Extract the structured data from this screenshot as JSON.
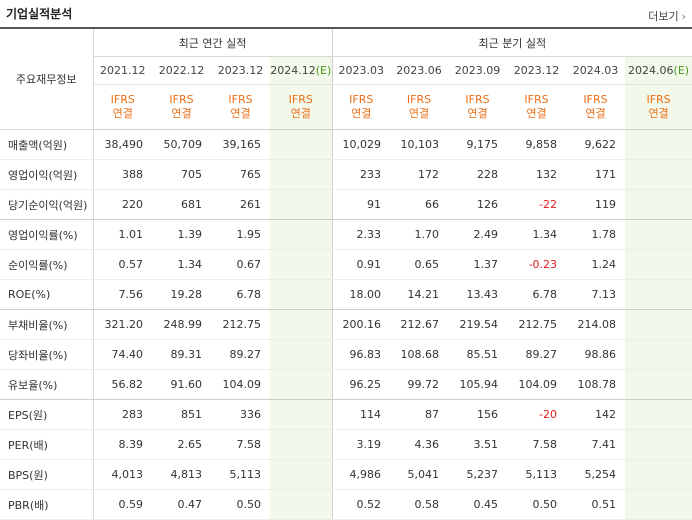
{
  "header": {
    "title": "기업실적분석",
    "more_label": "더보기",
    "more_icon": "chevron-right-icon"
  },
  "table": {
    "corner_label": "주요재무정보",
    "groups": {
      "annual": "최근 연간 실적",
      "quarterly": "최근 분기 실적"
    },
    "annual_periods": [
      "2021.12",
      "2022.12",
      "2023.12",
      "2024.12(E)"
    ],
    "quarter_periods": [
      "2023.03",
      "2023.06",
      "2023.09",
      "2023.12",
      "2024.03",
      "2024.06(E)"
    ],
    "basis_line1": "IFRS",
    "basis_line2": "연결",
    "rows": [
      {
        "label": "매출액(억원)",
        "annual": [
          "38,490",
          "50,709",
          "39,165",
          ""
        ],
        "quarter": [
          "10,029",
          "10,103",
          "9,175",
          "9,858",
          "9,622",
          ""
        ]
      },
      {
        "label": "영업이익(억원)",
        "annual": [
          "388",
          "705",
          "765",
          ""
        ],
        "quarter": [
          "233",
          "172",
          "228",
          "132",
          "171",
          ""
        ]
      },
      {
        "label": "당기순이익(억원)",
        "annual": [
          "220",
          "681",
          "261",
          ""
        ],
        "quarter": [
          "91",
          "66",
          "126",
          "-22",
          "119",
          ""
        ]
      },
      {
        "label": "영업이익률(%)",
        "annual": [
          "1.01",
          "1.39",
          "1.95",
          ""
        ],
        "quarter": [
          "2.33",
          "1.70",
          "2.49",
          "1.34",
          "1.78",
          ""
        ]
      },
      {
        "label": "순이익률(%)",
        "annual": [
          "0.57",
          "1.34",
          "0.67",
          ""
        ],
        "quarter": [
          "0.91",
          "0.65",
          "1.37",
          "-0.23",
          "1.24",
          ""
        ]
      },
      {
        "label": "ROE(%)",
        "annual": [
          "7.56",
          "19.28",
          "6.78",
          ""
        ],
        "quarter": [
          "18.00",
          "14.21",
          "13.43",
          "6.78",
          "7.13",
          ""
        ]
      },
      {
        "label": "부채비율(%)",
        "annual": [
          "321.20",
          "248.99",
          "212.75",
          ""
        ],
        "quarter": [
          "200.16",
          "212.67",
          "219.54",
          "212.75",
          "214.08",
          ""
        ]
      },
      {
        "label": "당좌비율(%)",
        "annual": [
          "74.40",
          "89.31",
          "89.27",
          ""
        ],
        "quarter": [
          "96.83",
          "108.68",
          "85.51",
          "89.27",
          "98.86",
          ""
        ]
      },
      {
        "label": "유보율(%)",
        "annual": [
          "56.82",
          "91.60",
          "104.09",
          ""
        ],
        "quarter": [
          "96.25",
          "99.72",
          "105.94",
          "104.09",
          "108.78",
          ""
        ]
      },
      {
        "label": "EPS(원)",
        "annual": [
          "283",
          "851",
          "336",
          ""
        ],
        "quarter": [
          "114",
          "87",
          "156",
          "-20",
          "142",
          ""
        ]
      },
      {
        "label": "PER(배)",
        "annual": [
          "8.39",
          "2.65",
          "7.58",
          ""
        ],
        "quarter": [
          "3.19",
          "4.36",
          "3.51",
          "7.58",
          "7.41",
          ""
        ]
      },
      {
        "label": "BPS(원)",
        "annual": [
          "4,013",
          "4,813",
          "5,113",
          ""
        ],
        "quarter": [
          "4,986",
          "5,041",
          "5,237",
          "5,113",
          "5,254",
          ""
        ]
      },
      {
        "label": "PBR(배)",
        "annual": [
          "0.59",
          "0.47",
          "0.50",
          ""
        ],
        "quarter": [
          "0.52",
          "0.58",
          "0.45",
          "0.50",
          "0.51",
          ""
        ]
      }
    ]
  }
}
